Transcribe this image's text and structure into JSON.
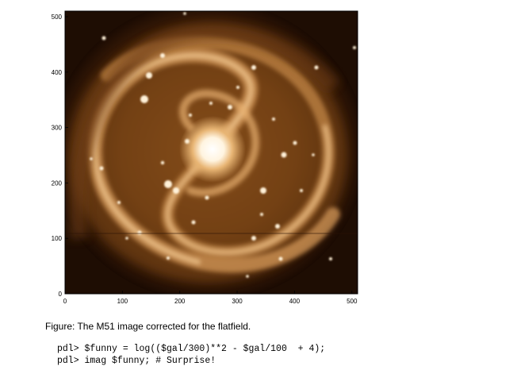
{
  "figure": {
    "subject": "M51 spiral galaxy image (flatfield corrected), copper colour map",
    "colormap": [
      "#000000",
      "#3a1a06",
      "#7a4316",
      "#b9782e",
      "#e8c08a",
      "#ffffff"
    ],
    "x_ticks": [
      "0",
      "100",
      "200",
      "300",
      "400",
      "500"
    ],
    "y_ticks": [
      "0",
      "100",
      "200",
      "300",
      "400",
      "500"
    ]
  },
  "caption": "Figure: The M51 image corrected for the flatfield.",
  "code_lines": [
    "pdl> $funny = log(($gal/300)**2 - $gal/100  + 4);",
    "pdl> imag $funny; # Surprise!"
  ]
}
